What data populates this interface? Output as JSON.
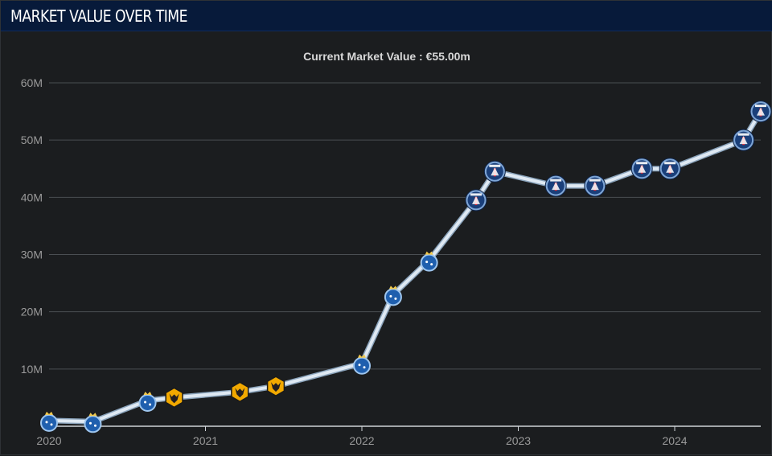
{
  "header": {
    "title": "MARKET VALUE OVER TIME"
  },
  "chart_data": {
    "type": "line",
    "title": "Current Market Value : €55.00m",
    "xlabel": "",
    "ylabel": "",
    "xlim": [
      2020.0,
      2024.55
    ],
    "ylim": [
      0,
      60
    ],
    "y_unit": "M",
    "yticks": [
      {
        "value": 10,
        "label": "10M"
      },
      {
        "value": 20,
        "label": "20M"
      },
      {
        "value": 30,
        "label": "30M"
      },
      {
        "value": 40,
        "label": "40M"
      },
      {
        "value": 50,
        "label": "50M"
      },
      {
        "value": 60,
        "label": "60M"
      }
    ],
    "xticks": [
      {
        "value": 2020,
        "label": "2020"
      },
      {
        "value": 2021,
        "label": "2021"
      },
      {
        "value": 2022,
        "label": "2022"
      },
      {
        "value": 2023,
        "label": "2023"
      },
      {
        "value": 2024,
        "label": "2024"
      }
    ],
    "grid": true,
    "series": [
      {
        "points": [
          {
            "x": 2020.0,
            "y": 1.0,
            "club": "porto"
          },
          {
            "x": 2020.28,
            "y": 0.8,
            "club": "porto"
          },
          {
            "x": 2020.63,
            "y": 4.5,
            "club": "porto"
          },
          {
            "x": 2020.8,
            "y": 5.0,
            "club": "wolves"
          },
          {
            "x": 2021.22,
            "y": 6.0,
            "club": "wolves"
          },
          {
            "x": 2021.45,
            "y": 7.0,
            "club": "wolves"
          },
          {
            "x": 2022.0,
            "y": 11.0,
            "club": "porto"
          },
          {
            "x": 2022.2,
            "y": 23.0,
            "club": "porto"
          },
          {
            "x": 2022.43,
            "y": 29.0,
            "club": "porto"
          },
          {
            "x": 2022.73,
            "y": 39.5,
            "club": "psg"
          },
          {
            "x": 2022.85,
            "y": 44.5,
            "club": "psg"
          },
          {
            "x": 2023.24,
            "y": 42.0,
            "club": "psg"
          },
          {
            "x": 2023.49,
            "y": 42.0,
            "club": "psg"
          },
          {
            "x": 2023.79,
            "y": 45.0,
            "club": "psg"
          },
          {
            "x": 2023.97,
            "y": 45.0,
            "club": "psg"
          },
          {
            "x": 2024.44,
            "y": 50.0,
            "club": "psg"
          },
          {
            "x": 2024.55,
            "y": 55.0,
            "club": "psg"
          }
        ]
      }
    ],
    "club_colors": {
      "porto": {
        "badge": "#1f5fae",
        "ring": "#9fc6ee",
        "accent": "#f2c94c"
      },
      "wolves": {
        "badge": "#f2a900",
        "ring": "#231f20",
        "accent": "#231f20"
      },
      "psg": {
        "badge": "#1a3f7a",
        "ring": "#7fa6d6",
        "accent": "#e0242f"
      }
    }
  }
}
